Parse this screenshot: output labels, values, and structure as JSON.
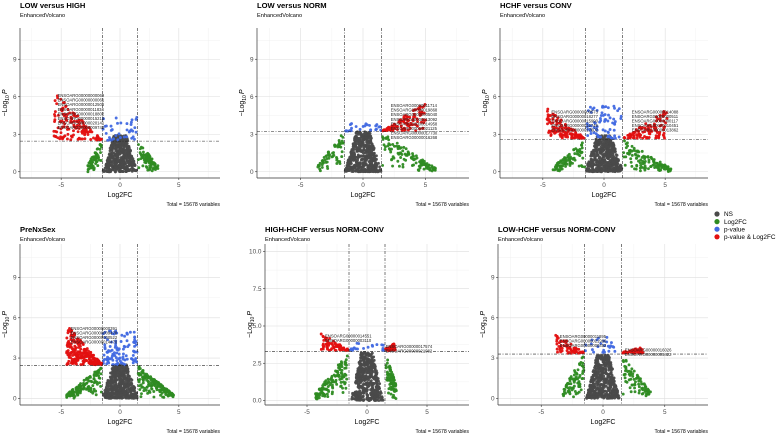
{
  "legend": [
    {
      "label": "NS",
      "color": "#4a4a4a"
    },
    {
      "label": "Log2FC",
      "color": "#2e8b22"
    },
    {
      "label": "p-value",
      "color": "#4169e1"
    },
    {
      "label": "p-value & Log2FC",
      "color": "#e31010"
    }
  ],
  "chart_data": [
    {
      "type": "scatter",
      "title": "LOW versus HIGH",
      "subtitle": "EnhancedVolcano",
      "xlabel": "Log2FC",
      "ylabel_main": "−Log",
      "ylabel_sub": "10",
      "ylabel_var": "P",
      "caption": "Total = 15678 variables",
      "xlim": [
        -8.5,
        8.5
      ],
      "ylim": [
        -0.5,
        11.5
      ],
      "xticks": [
        -5,
        0,
        5
      ],
      "xtick_labels": [
        "-5",
        "0",
        "5"
      ],
      "yticks": [
        0,
        3,
        6,
        9
      ],
      "ytick_labels": [
        "0",
        "3",
        "6",
        "9"
      ],
      "fc_cutoff": 1.5,
      "p_cutoff": 2.45,
      "seed": 11,
      "shape": {
        "ns_max": 2.9,
        "ns_w": 1.3,
        "green_left": 2.7,
        "green_right": 3.2,
        "green_top": 2.45,
        "red_left": {
          "x0": -5.6,
          "y": 6.3
        },
        "red_right": null,
        "blue_top": 4.3,
        "nred": 150,
        "nblue": 40,
        "ngreen": 150
      },
      "labels": [
        "ENSOARG00000000069",
        "ENSOARG00000000061",
        "ENSOARG00000012506",
        "ENSOARG00000011834",
        "ENSOARG00000018802",
        "ENSOARG00000015216",
        "ENSOARG00000020141",
        "ENSOARG00000009742"
      ]
    },
    {
      "type": "scatter",
      "title": "LOW versus NORM",
      "subtitle": "EnhancedVolcano",
      "xlabel": "Log2FC",
      "ylabel_main": "−Log",
      "ylabel_sub": "10",
      "ylabel_var": "P",
      "caption": "Total = 15678 variables",
      "xlim": [
        -8.5,
        8.5
      ],
      "ylim": [
        -0.5,
        11.5
      ],
      "xticks": [
        -5,
        0,
        5
      ],
      "xtick_labels": [
        "-5",
        "0",
        "5"
      ],
      "yticks": [
        0,
        3,
        6,
        9
      ],
      "ytick_labels": [
        "0",
        "3",
        "6",
        "9"
      ],
      "fc_cutoff": 1.5,
      "p_cutoff": 3.2,
      "seed": 23,
      "shape": {
        "ns_max": 3.2,
        "ns_w": 1.3,
        "green_left": 3.6,
        "green_right": 5.8,
        "green_top": 3.2,
        "red_left": null,
        "red_right": {
          "x1": 5.0,
          "y": 5.5
        },
        "blue_top": 3.9,
        "nred": 110,
        "nblue": 25,
        "ngreen": 180
      },
      "labels": [
        "ENSOARG00000011714",
        "ENSOARG00000019868",
        "ENSOARG00000005040",
        "ENSOARG00000013092",
        "ENSOARG00000014958",
        "ENSOARG00000021125",
        "ENSOARG00000017730",
        "ENSOARG00000016268"
      ]
    },
    {
      "type": "scatter",
      "title": "HCHF versus CONV",
      "subtitle": "EnhancedVolcano",
      "xlabel": "Log2FC",
      "ylabel_main": "−Log",
      "ylabel_sub": "10",
      "ylabel_var": "P",
      "caption": "Total = 15678 variables",
      "xlim": [
        -8.5,
        8.5
      ],
      "ylim": [
        -0.5,
        11.5
      ],
      "xticks": [
        -5,
        0,
        5
      ],
      "xtick_labels": [
        "-5",
        "0",
        "5"
      ],
      "yticks": [
        0,
        3,
        6,
        9
      ],
      "ytick_labels": [
        "0",
        "3",
        "6",
        "9"
      ],
      "fc_cutoff": 1.5,
      "p_cutoff": 2.6,
      "seed": 37,
      "shape": {
        "ns_max": 2.9,
        "ns_w": 1.4,
        "green_left": 4.2,
        "green_right": 5.5,
        "green_top": 2.6,
        "red_left": {
          "x0": -4.6,
          "y": 5.0
        },
        "red_right": {
          "x1": 5.2,
          "y": 5.0
        },
        "blue_top": 5.2,
        "nred": 230,
        "nblue": 70,
        "ngreen": 200
      },
      "labels": [
        "ENSOARG00000000573",
        "ENSOARG00000014088",
        "ENSOARG00000018277",
        "ENSOARG00000000511",
        "ENSOARG00000015990",
        "ENSOARG00000000117",
        "ENSOARG00000012746",
        "ENSOARG00000010451",
        "ENSOARG00000017602",
        "ENSOARG00000013862"
      ]
    },
    {
      "type": "scatter",
      "title": "PreNxSex",
      "subtitle": "EnhancedVolcano",
      "xlabel": "Log2FC",
      "ylabel_main": "−Log",
      "ylabel_sub": "10",
      "ylabel_var": "P",
      "caption": "Total = 15678 variables",
      "xlim": [
        -8.5,
        8.5
      ],
      "ylim": [
        -0.5,
        11.5
      ],
      "xticks": [
        -5,
        0,
        5
      ],
      "xtick_labels": [
        "-5",
        "0",
        "5"
      ],
      "yticks": [
        0,
        3,
        6,
        9
      ],
      "ytick_labels": [
        "0",
        "3",
        "6",
        "9"
      ],
      "fc_cutoff": 1.5,
      "p_cutoff": 2.45,
      "seed": 41,
      "shape": {
        "ns_max": 2.5,
        "ns_w": 1.4,
        "green_left": 4.5,
        "green_right": 4.5,
        "green_top": 2.45,
        "red_left": {
          "x0": -4.5,
          "y": 5.4
        },
        "red_right": null,
        "blue_top": 5.0,
        "nred": 220,
        "nblue": 110,
        "ngreen": 300
      },
      "labels": [
        "ENSOARG00000000391",
        "ENSOARG00000009478",
        "ENSOARG00000000522",
        "ENSOARG00000014470"
      ]
    },
    {
      "type": "scatter",
      "title": "HIGH-HCHF versus NORM-CONV",
      "subtitle": "EnhancedVolcano",
      "xlabel": "Log2FC",
      "ylabel_main": "−Log",
      "ylabel_sub": "10",
      "ylabel_var": "P",
      "caption": "Total = 15678 variables",
      "xlim": [
        -8.5,
        8.5
      ],
      "ylim": [
        -0.3,
        10.5
      ],
      "xticks": [
        -5,
        0,
        5
      ],
      "xtick_labels": [
        "-5",
        "0",
        "5"
      ],
      "yticks": [
        0,
        2.5,
        5,
        7.5,
        10
      ],
      "ytick_labels": [
        "0.0",
        "2.5",
        "5.0",
        "7.5",
        "10.0"
      ],
      "fc_cutoff": 1.5,
      "p_cutoff": 3.3,
      "seed": 53,
      "shape": {
        "ns_max": 3.2,
        "ns_w": 1.2,
        "green_left": 4.3,
        "green_right": 2.4,
        "green_top": 3.3,
        "red_left": {
          "x0": -3.8,
          "y": 4.5
        },
        "red_right": {
          "x1": 2.3,
          "y": 3.8
        },
        "blue_top": 3.8,
        "nred": 150,
        "nblue": 20,
        "ngreen": 200
      },
      "labels": [
        "ENSOARG00000014551",
        "ENSOARG00000017574",
        "ENSOARG00000003110",
        "ENSOARG00000021082"
      ]
    },
    {
      "type": "scatter",
      "title": "LOW-HCHF versus NORM-CONV",
      "subtitle": "EnhancedVolcano",
      "xlabel": "Log2FC",
      "ylabel_main": "−Log",
      "ylabel_sub": "10",
      "ylabel_var": "P",
      "caption": "Total = 15678 variables",
      "xlim": [
        -8.5,
        8.5
      ],
      "ylim": [
        -0.5,
        11.5
      ],
      "xticks": [
        -5,
        0,
        5
      ],
      "xtick_labels": [
        "-5",
        "0",
        "5"
      ],
      "yticks": [
        0,
        3,
        6,
        9
      ],
      "ytick_labels": [
        "0",
        "3",
        "6",
        "9"
      ],
      "fc_cutoff": 1.5,
      "p_cutoff": 3.3,
      "seed": 67,
      "shape": {
        "ns_max": 3.2,
        "ns_w": 1.2,
        "green_left": 3.2,
        "green_right": 3.8,
        "green_top": 3.3,
        "red_left": {
          "x0": -3.8,
          "y": 4.8
        },
        "red_right": {
          "x1": 3.2,
          "y": 3.8
        },
        "blue_top": 4.6,
        "nred": 110,
        "nblue": 25,
        "ngreen": 160
      },
      "labels": [
        "ENSOARG00000011895",
        "ENSOARG00000016026",
        "ENSOARG00000021996",
        "ENSOARG00000005422",
        "ENSOARG00000000452"
      ]
    }
  ]
}
